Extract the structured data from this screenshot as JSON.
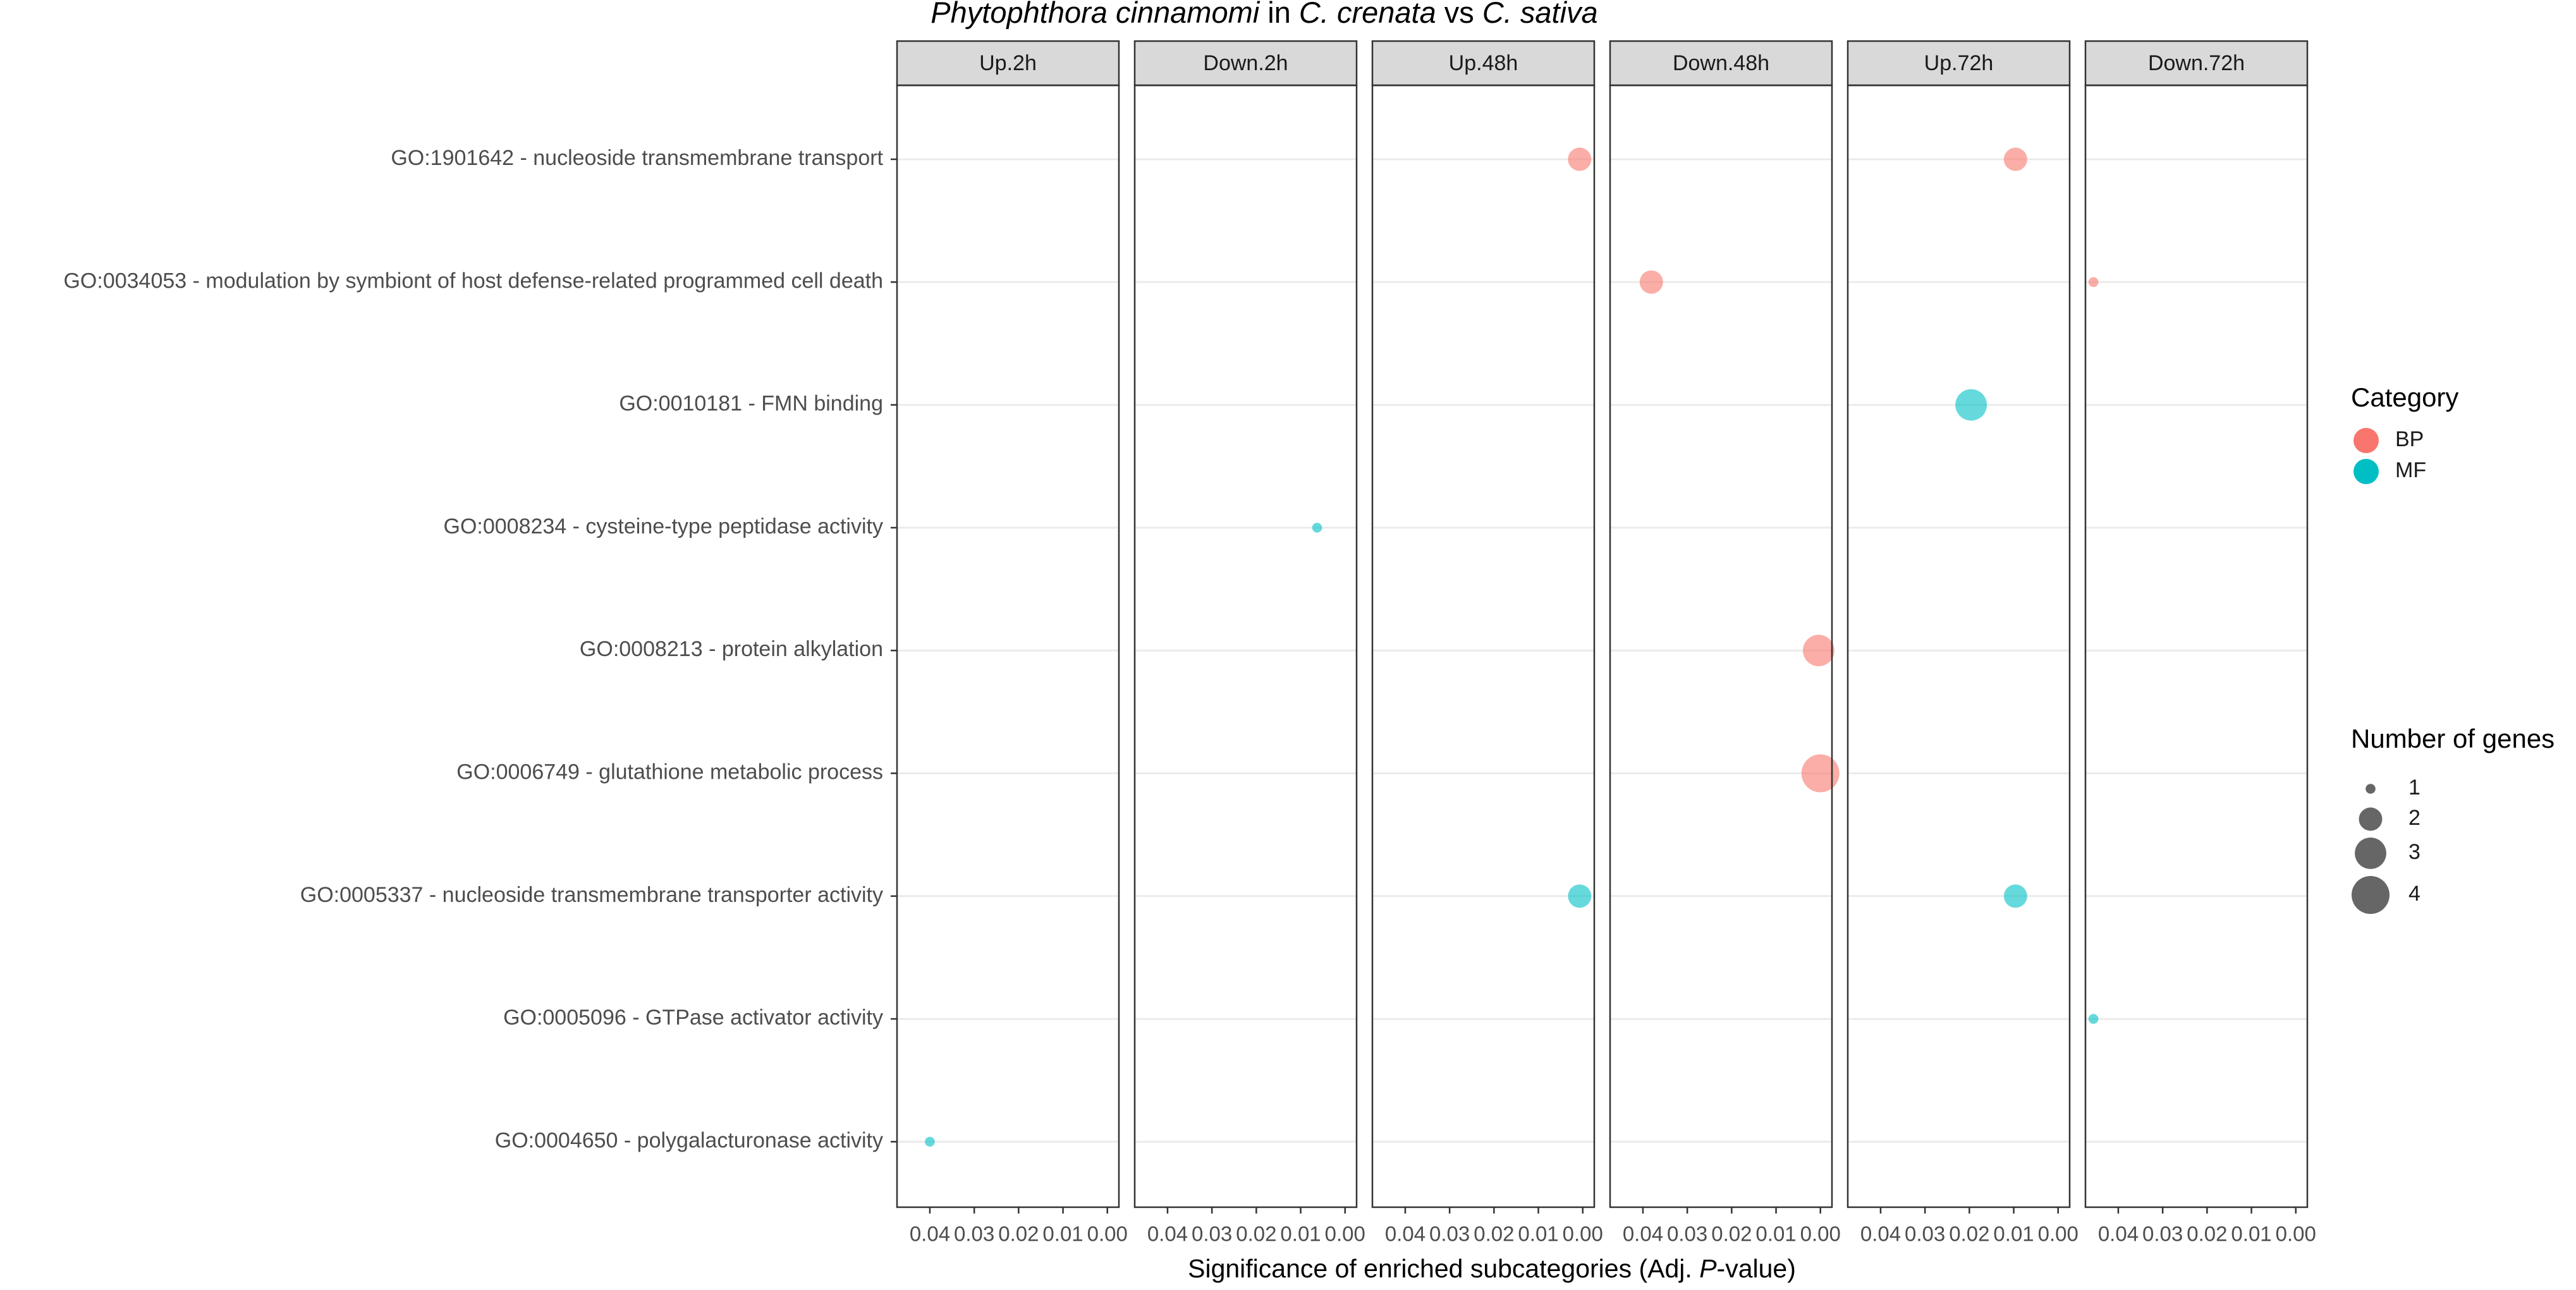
{
  "chart_data": {
    "type": "scatter",
    "title_parts": [
      {
        "text": "Phytophthora cinnamomi",
        "italic": true
      },
      {
        "text": " in ",
        "italic": false
      },
      {
        "text": "C. crenata",
        "italic": true
      },
      {
        "text": " vs ",
        "italic": false
      },
      {
        "text": "C. sativa",
        "italic": true
      }
    ],
    "x_label_parts": [
      {
        "text": "Significance of enriched subcategories (Adj. ",
        "italic": false
      },
      {
        "text": "P",
        "italic": true
      },
      {
        "text": "-value)",
        "italic": false
      }
    ],
    "facets": [
      "Up.2h",
      "Down.2h",
      "Up.48h",
      "Down.48h",
      "Up.72h",
      "Down.72h"
    ],
    "categories": [
      "GO:1901642 - nucleoside transmembrane transport",
      "GO:0034053 - modulation by symbiont of host defense-related programmed cell death",
      "GO:0010181 - FMN binding",
      "GO:0008234 - cysteine-type peptidase activity",
      "GO:0008213 - protein alkylation",
      "GO:0006749 - glutathione metabolic process",
      "GO:0005337 - nucleoside transmembrane transporter activity",
      "GO:0005096 - GTPase activator activity",
      "GO:0004650 - polygalacturonase activity"
    ],
    "xlim": [
      0.0474,
      -0.0026
    ],
    "xticks": [
      0.04,
      0.03,
      0.02,
      0.01,
      {
        "value": 0,
        "label": "0.00"
      }
    ],
    "grid": true,
    "color_legend_title": "Category",
    "size_legend": {
      "title": "Number of genes",
      "values": [
        1,
        2,
        3,
        4
      ]
    },
    "series": [
      {
        "name": "BP",
        "color": "#F8766D",
        "facet": [
          "Up.48h",
          "Up.72h",
          "Down.48h",
          "Down.72h",
          "Down.48h",
          "Down.48h"
        ],
        "y": [
          "GO:1901642 - nucleoside transmembrane transport",
          "GO:1901642 - nucleoside transmembrane transport",
          "GO:0034053 - modulation by symbiont of host defense-related programmed cell death",
          "GO:0034053 - modulation by symbiont of host defense-related programmed cell death",
          "GO:0008213 - protein alkylation",
          "GO:0006749 - glutathione metabolic process"
        ],
        "x": [
          0.0007,
          0.0096,
          0.0381,
          0.0456,
          0.0004,
          0.0
        ],
        "size": [
          2,
          2,
          2,
          1,
          3,
          4
        ]
      },
      {
        "name": "MF",
        "color": "#00BFC4",
        "facet": [
          "Up.72h",
          "Down.2h",
          "Up.48h",
          "Up.72h",
          "Down.72h",
          "Up.2h"
        ],
        "y": [
          "GO:0010181 - FMN binding",
          "GO:0008234 - cysteine-type peptidase activity",
          "GO:0005337 - nucleoside transmembrane transporter activity",
          "GO:0005337 - nucleoside transmembrane transporter activity",
          "GO:0005096 - GTPase activator activity",
          "GO:0004650 - polygalacturonase activity"
        ],
        "x": [
          0.0196,
          0.0063,
          0.0007,
          0.0096,
          0.0456,
          0.04
        ],
        "size": [
          3,
          1,
          2,
          2,
          1,
          1
        ]
      }
    ]
  }
}
